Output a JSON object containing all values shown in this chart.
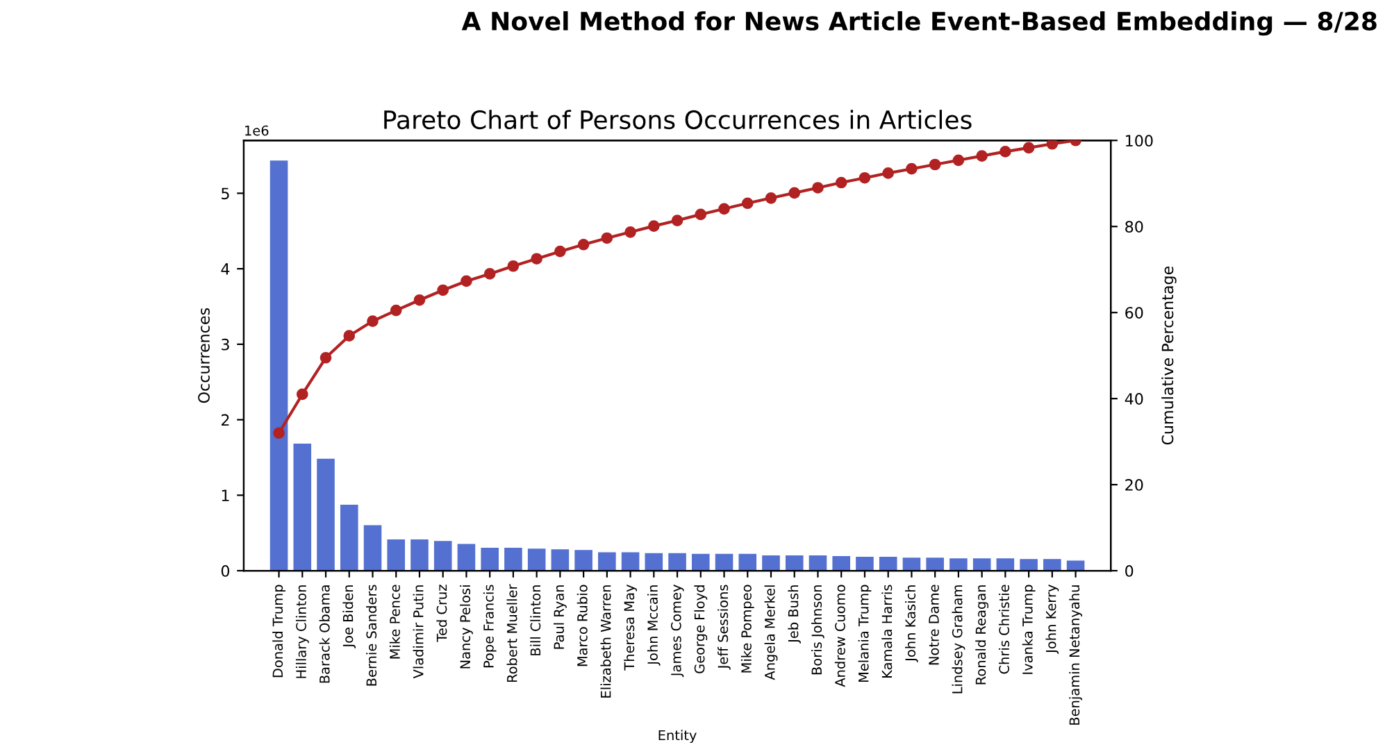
{
  "chart_data": {
    "type": "bar",
    "title": "Pareto Chart of Persons Occurrences in Articles",
    "xlabel": "Entity",
    "ylabel": "Occurrences",
    "y2label": "Cumulative Percentage",
    "annotations": [
      "A Novel Method for News Article Event-Based Embedding — 8/28",
      "1e6"
    ],
    "categories": [
      "Donald Trump",
      "Hillary Clinton",
      "Barack Obama",
      "Joe Biden",
      "Bernie Sanders",
      "Mike Pence",
      "Vladimir Putin",
      "Ted Cruz",
      "Nancy Pelosi",
      "Pope Francis",
      "Robert Mueller",
      "Bill Clinton",
      "Paul Ryan",
      "Marco Rubio",
      "Elizabeth Warren",
      "Theresa May",
      "John Mccain",
      "James Comey",
      "George Floyd",
      "Jeff Sessions",
      "Mike Pompeo",
      "Angela Merkel",
      "Jeb Bush",
      "Boris Johnson",
      "Andrew Cuomo",
      "Melania Trump",
      "Kamala Harris",
      "John Kasich",
      "Notre Dame",
      "Lindsey Graham",
      "Ronald Reagan",
      "Chris Christie",
      "Ivanka Trump",
      "John Kerry",
      "Benjamin Netanyahu"
    ],
    "series": [
      {
        "color": "#5470d0",
        "values": [
          5.44,
          1.69,
          1.49,
          0.88,
          0.61,
          0.42,
          0.42,
          0.4,
          0.36,
          0.31,
          0.31,
          0.3,
          0.29,
          0.28,
          0.25,
          0.25,
          0.24,
          0.24,
          0.23,
          0.23,
          0.23,
          0.21,
          0.21,
          0.21,
          0.2,
          0.19,
          0.19,
          0.18,
          0.18,
          0.17,
          0.17,
          0.17,
          0.16,
          0.16,
          0.14
        ]
      },
      {
        "type": "line",
        "axis": "y2",
        "color": "#b22222",
        "marker": "circle",
        "values": [
          32,
          41,
          49.5,
          54.6,
          58,
          60.5,
          62.9,
          65.2,
          67.3,
          69,
          70.8,
          72.5,
          74.2,
          75.8,
          77.3,
          78.7,
          80.1,
          81.4,
          82.8,
          84.1,
          85.4,
          86.6,
          87.8,
          89,
          90.2,
          91.3,
          92.4,
          93.4,
          94.4,
          95.4,
          96.4,
          97.4,
          98.3,
          99.2,
          100
        ]
      }
    ],
    "ylim": [
      0,
      5.7
    ],
    "yticks": [
      0,
      1,
      2,
      3,
      4,
      5
    ],
    "y2lim": [
      0,
      100
    ],
    "y2ticks": [
      0,
      20,
      40,
      60,
      80,
      100
    ],
    "grid": false,
    "legend": false
  }
}
